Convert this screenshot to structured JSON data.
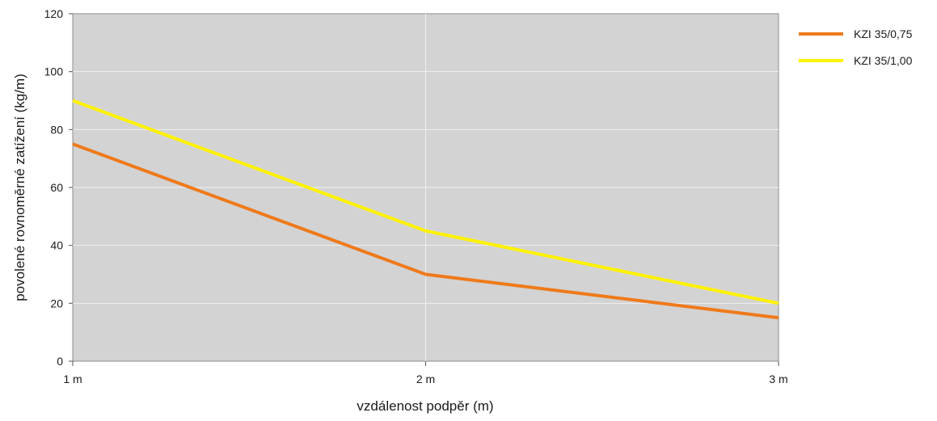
{
  "chart_data": {
    "type": "line",
    "categories": [
      "1 m",
      "2 m",
      "3 m"
    ],
    "series": [
      {
        "name": "KZI 35/0,75",
        "values": [
          75,
          30,
          15
        ],
        "color": "#ef7a1a"
      },
      {
        "name": "KZI 35/1,00",
        "values": [
          90,
          45,
          20
        ],
        "color": "#fff200"
      }
    ],
    "title": "",
    "xlabel": "vzdálenost podpěr (m)",
    "ylabel": "povolené rovnoměrné zatížení (kg/m)",
    "ylim": [
      0,
      120
    ],
    "yticks": [
      0,
      20,
      40,
      60,
      80,
      100,
      120
    ],
    "grid": true,
    "legend_position": "right",
    "plot_background": "#d3d3d3",
    "grid_color": "#f0f0f0"
  }
}
